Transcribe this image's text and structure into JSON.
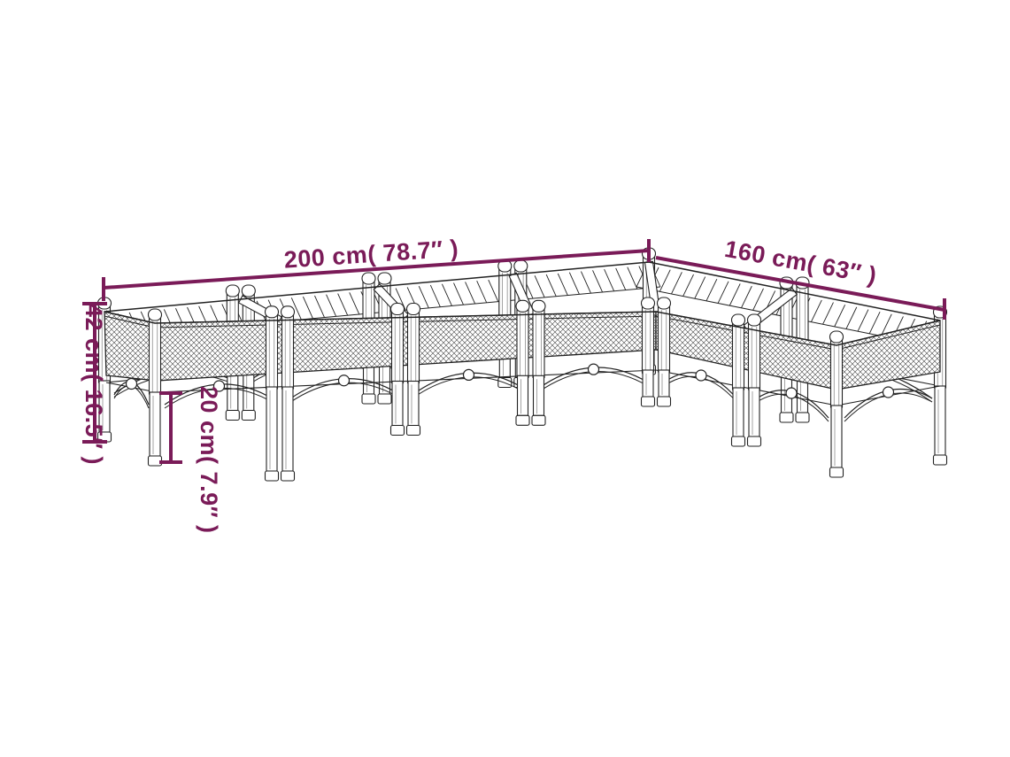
{
  "figure": {
    "description": "L-shaped garden planter with legs, dimension line drawing",
    "dimension_labels": {
      "length": "200 cm( 78.7″ )",
      "depth": "160 cm( 63″ )",
      "height": "42 cm( 16.5″ )",
      "leg_height": "20 cm( 7.9″ )"
    },
    "colors": {
      "dimension_accent": "#7a1b58",
      "line_art": "#222222",
      "background": "#ffffff"
    }
  }
}
